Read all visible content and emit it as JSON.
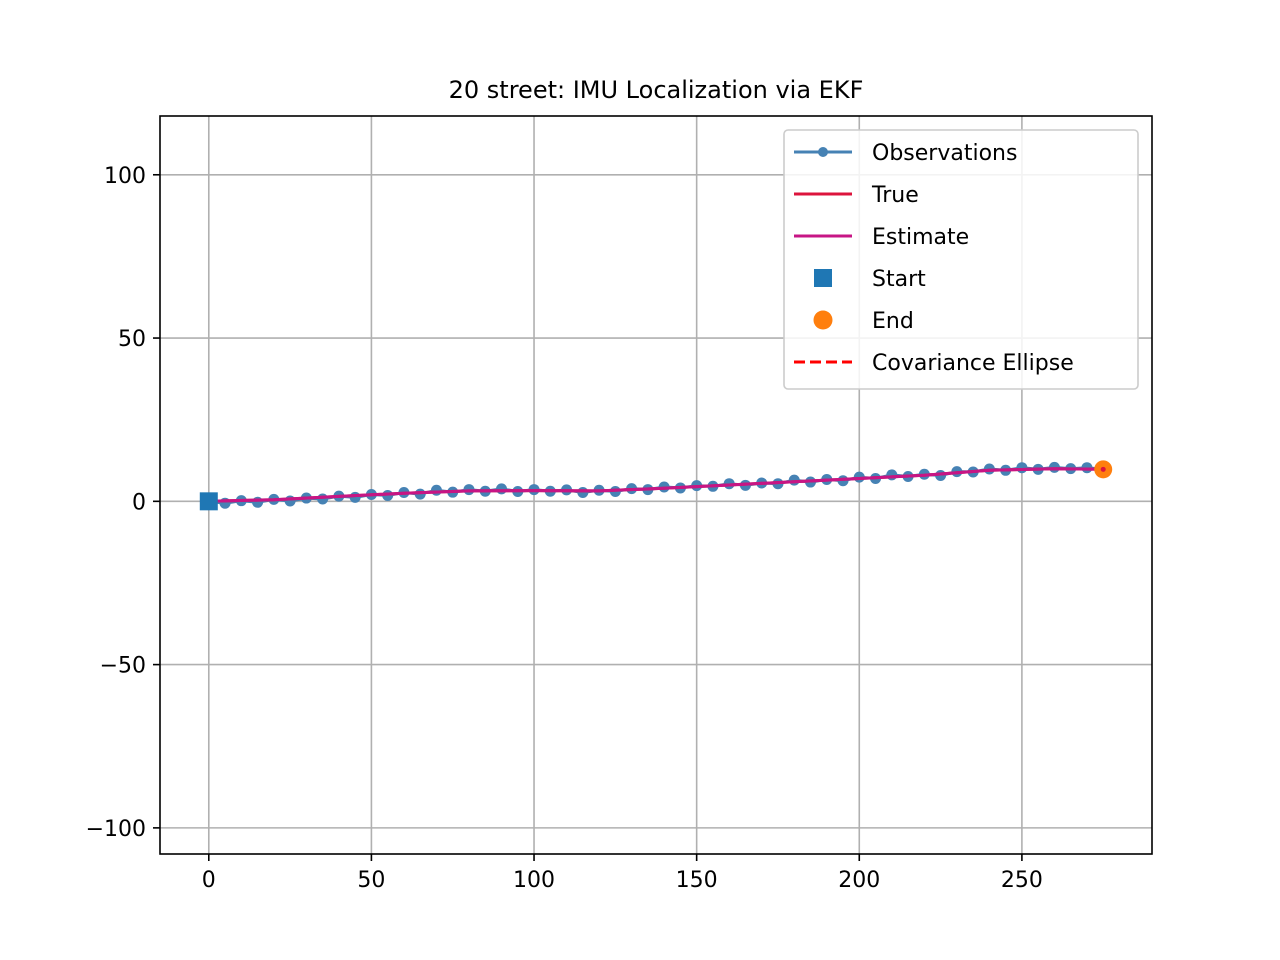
{
  "chart_data": {
    "type": "line",
    "title": "20 street: IMU Localization via EKF",
    "xlabel": "",
    "ylabel": "",
    "xlim": [
      -15,
      290
    ],
    "ylim": [
      -108,
      118
    ],
    "xticks": [
      0,
      50,
      100,
      150,
      200,
      250
    ],
    "xtick_labels": [
      "0",
      "50",
      "100",
      "150",
      "200",
      "250"
    ],
    "yticks": [
      100,
      50,
      0,
      -50,
      -100
    ],
    "ytick_labels": [
      "100",
      "50",
      "0",
      "−50",
      "−100"
    ],
    "grid": true,
    "legend_position": "top-right",
    "legend": [
      {
        "label": "Observations",
        "style": "line-dot",
        "color": "#4682b4"
      },
      {
        "label": "True",
        "style": "line",
        "color": "#dc143c"
      },
      {
        "label": "Estimate",
        "style": "line",
        "color": "#c71585"
      },
      {
        "label": "Start",
        "style": "square",
        "color": "#1f77b4"
      },
      {
        "label": "End",
        "style": "circle",
        "color": "#ff7f0e"
      },
      {
        "label": "Covariance Ellipse",
        "style": "dashed",
        "color": "#ff0000"
      }
    ],
    "series": [
      {
        "name": "True",
        "color": "#dc143c",
        "x": [
          0,
          20,
          40,
          60,
          80,
          100,
          120,
          140,
          160,
          180,
          200,
          220,
          240,
          260,
          275
        ],
        "y": [
          0,
          0.5,
          1.5,
          2.5,
          3.2,
          3.3,
          3.2,
          4.0,
          5.0,
          6.0,
          7.0,
          8.0,
          9.5,
          10.0,
          9.8
        ]
      },
      {
        "name": "Estimate",
        "color": "#c71585",
        "x": [
          0,
          20,
          40,
          60,
          80,
          100,
          120,
          140,
          160,
          180,
          200,
          220,
          240,
          260,
          275
        ],
        "y": [
          0,
          0.5,
          1.5,
          2.5,
          3.2,
          3.3,
          3.2,
          4.0,
          5.0,
          6.0,
          7.0,
          8.0,
          9.5,
          10.0,
          9.8
        ]
      },
      {
        "name": "Observations",
        "color": "#4682b4",
        "x": [
          0,
          5,
          10,
          15,
          20,
          25,
          30,
          35,
          40,
          45,
          50,
          55,
          60,
          65,
          70,
          75,
          80,
          85,
          90,
          95,
          100,
          105,
          110,
          115,
          120,
          125,
          130,
          135,
          140,
          145,
          150,
          155,
          160,
          165,
          170,
          175,
          180,
          185,
          190,
          195,
          200,
          205,
          210,
          215,
          220,
          225,
          230,
          235,
          240,
          245,
          250,
          255,
          260,
          265,
          270,
          275
        ],
        "y": [
          0.0,
          -0.6,
          0.2,
          -0.3,
          0.6,
          0.1,
          1.0,
          0.7,
          1.6,
          1.2,
          2.1,
          1.8,
          2.7,
          2.2,
          3.4,
          2.8,
          3.6,
          3.1,
          3.8,
          3.0,
          3.6,
          3.1,
          3.5,
          2.7,
          3.4,
          3.0,
          3.9,
          3.6,
          4.4,
          4.1,
          4.8,
          4.6,
          5.4,
          4.9,
          5.6,
          5.4,
          6.5,
          5.9,
          6.7,
          6.3,
          7.4,
          7.0,
          8.1,
          7.6,
          8.3,
          7.9,
          9.1,
          9.0,
          9.9,
          9.5,
          10.3,
          9.8,
          10.4,
          10.0,
          10.3,
          9.8
        ]
      }
    ],
    "start": {
      "x": 0,
      "y": 0,
      "color": "#1f77b4"
    },
    "end": {
      "x": 275,
      "y": 9.8,
      "color": "#ff7f0e"
    }
  }
}
